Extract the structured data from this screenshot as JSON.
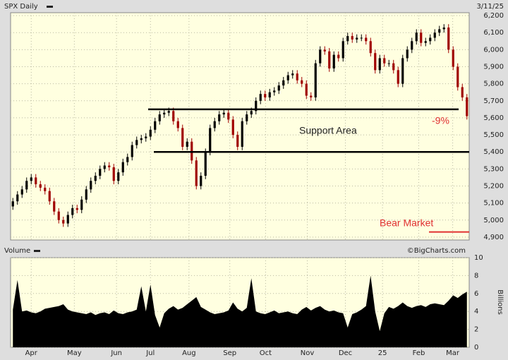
{
  "chart_data": {
    "type": "candlestick",
    "title": "SPX Daily",
    "date": "3/11/25",
    "credit": "©BigCharts.com",
    "up_color": "#000000",
    "down_color": "#a00000",
    "background": "#ffffe0",
    "grid": true,
    "ylim": [
      4883,
      6217
    ],
    "yticks": [
      {
        "value": 4900,
        "label": "4,900"
      },
      {
        "value": 5000,
        "label": "5,000"
      },
      {
        "value": 5100,
        "label": "5,100"
      },
      {
        "value": 5200,
        "label": "5,200"
      },
      {
        "value": 5300,
        "label": "5,300"
      },
      {
        "value": 5400,
        "label": "5,400"
      },
      {
        "value": 5500,
        "label": "5,500"
      },
      {
        "value": 5600,
        "label": "5,600"
      },
      {
        "value": 5700,
        "label": "5,700"
      },
      {
        "value": 5800,
        "label": "5,800"
      },
      {
        "value": 5900,
        "label": "5,900"
      },
      {
        "value": 6000,
        "label": "6,000"
      },
      {
        "value": 6100,
        "label": "6,100"
      },
      {
        "value": 6200,
        "label": "6,200"
      }
    ],
    "xlim": [
      0,
      100
    ],
    "xticks": [
      {
        "value": 4.5,
        "label": "Apr"
      },
      {
        "value": 13.9,
        "label": "May"
      },
      {
        "value": 23.1,
        "label": "Jun"
      },
      {
        "value": 30.5,
        "label": "Jul"
      },
      {
        "value": 38.9,
        "label": "Aug"
      },
      {
        "value": 47.8,
        "label": "Sep"
      },
      {
        "value": 55.6,
        "label": "Oct"
      },
      {
        "value": 64.7,
        "label": "Nov"
      },
      {
        "value": 73,
        "label": "Dec"
      },
      {
        "value": 81.1,
        "label": "25"
      },
      {
        "value": 89,
        "label": "Feb"
      },
      {
        "value": 96.4,
        "label": "Mar"
      }
    ],
    "open": [
      5080,
      5110,
      5150,
      5180,
      5230,
      5250,
      5210,
      5190,
      5170,
      5110,
      5050,
      5000,
      4980,
      5030,
      5070,
      5060,
      5120,
      5180,
      5230,
      5260,
      5300,
      5320,
      5310,
      5230,
      5280,
      5340,
      5370,
      5440,
      5470,
      5480,
      5490,
      5530,
      5580,
      5620,
      5630,
      5640,
      5580,
      5540,
      5430,
      5460,
      5350,
      5200,
      5260,
      5400,
      5540,
      5580,
      5620,
      5630,
      5590,
      5500,
      5430,
      5580,
      5620,
      5640,
      5700,
      5740,
      5720,
      5750,
      5760,
      5790,
      5820,
      5850,
      5860,
      5820,
      5800,
      5730,
      5720,
      5920,
      6000,
      5990,
      5890,
      5970,
      5950,
      6050,
      6080,
      6060,
      6070,
      6070,
      6050,
      5980,
      5880,
      5950,
      5920,
      5920,
      5880,
      5800,
      5950,
      6000,
      6050,
      6100,
      6040,
      6050,
      6070,
      6100,
      6120,
      6130,
      6000,
      5900,
      5780,
      5720
    ],
    "high": [
      5130,
      5170,
      5200,
      5250,
      5270,
      5270,
      5230,
      5210,
      5190,
      5130,
      5070,
      5020,
      5050,
      5090,
      5090,
      5140,
      5200,
      5250,
      5280,
      5320,
      5340,
      5340,
      5330,
      5300,
      5360,
      5390,
      5460,
      5490,
      5500,
      5510,
      5550,
      5600,
      5640,
      5650,
      5660,
      5660,
      5600,
      5560,
      5480,
      5480,
      5370,
      5280,
      5420,
      5560,
      5600,
      5640,
      5650,
      5650,
      5610,
      5520,
      5600,
      5640,
      5660,
      5720,
      5760,
      5760,
      5770,
      5780,
      5810,
      5840,
      5870,
      5880,
      5880,
      5840,
      5820,
      5750,
      5940,
      6020,
      6020,
      6010,
      5990,
      5990,
      6070,
      6100,
      6100,
      6090,
      6090,
      6090,
      6070,
      6000,
      5970,
      5970,
      5940,
      5940,
      5900,
      5970,
      6020,
      6070,
      6120,
      6120,
      6070,
      6090,
      6120,
      6140,
      6150,
      6150,
      6020,
      5920,
      5800,
      5740
    ],
    "low": [
      5060,
      5090,
      5130,
      5160,
      5210,
      5190,
      5170,
      5150,
      5090,
      5030,
      4980,
      4960,
      4960,
      5010,
      5040,
      5040,
      5100,
      5160,
      5210,
      5240,
      5280,
      5290,
      5210,
      5210,
      5260,
      5320,
      5350,
      5420,
      5450,
      5460,
      5470,
      5510,
      5560,
      5600,
      5610,
      5560,
      5520,
      5410,
      5410,
      5330,
      5180,
      5180,
      5240,
      5380,
      5520,
      5560,
      5600,
      5570,
      5480,
      5410,
      5410,
      5560,
      5600,
      5620,
      5680,
      5700,
      5700,
      5730,
      5740,
      5770,
      5800,
      5830,
      5800,
      5780,
      5710,
      5700,
      5700,
      5900,
      5970,
      5870,
      5870,
      5930,
      5930,
      6030,
      6040,
      6040,
      6050,
      6030,
      5960,
      5860,
      5860,
      5900,
      5900,
      5860,
      5780,
      5780,
      5930,
      5980,
      6030,
      6020,
      6020,
      6030,
      6050,
      6080,
      6100,
      5980,
      5880,
      5760,
      5700,
      5590
    ],
    "close": [
      5110,
      5150,
      5180,
      5230,
      5250,
      5210,
      5190,
      5170,
      5110,
      5050,
      5000,
      4980,
      5030,
      5070,
      5060,
      5120,
      5180,
      5230,
      5260,
      5300,
      5320,
      5310,
      5230,
      5280,
      5340,
      5370,
      5440,
      5470,
      5480,
      5490,
      5530,
      5580,
      5620,
      5630,
      5640,
      5580,
      5540,
      5430,
      5460,
      5350,
      5200,
      5260,
      5400,
      5540,
      5580,
      5620,
      5630,
      5590,
      5500,
      5430,
      5580,
      5620,
      5640,
      5700,
      5740,
      5720,
      5750,
      5760,
      5790,
      5820,
      5850,
      5860,
      5820,
      5800,
      5730,
      5720,
      5920,
      6000,
      5990,
      5890,
      5970,
      5950,
      6050,
      6080,
      6060,
      6070,
      6070,
      6050,
      5980,
      5880,
      5950,
      5920,
      5920,
      5880,
      5800,
      5950,
      6000,
      6050,
      6100,
      6040,
      6050,
      6070,
      6100,
      6120,
      6130,
      6000,
      5900,
      5780,
      5720,
      5610
    ],
    "support_levels": [
      5650,
      5400
    ],
    "support_label": "Support Area",
    "drawdown_label": "-9%",
    "bear_market_level": 4930,
    "bear_market_label": "Bear Market",
    "volume": {
      "title": "Volume",
      "axis_label": "Billions",
      "color": "#000000",
      "ylim": [
        0,
        10
      ],
      "yticks": [
        0,
        2,
        4,
        6,
        8,
        10
      ],
      "values": [
        4.2,
        7.5,
        4.0,
        4.1,
        3.9,
        3.8,
        4.0,
        4.3,
        4.4,
        4.5,
        4.6,
        4.8,
        4.2,
        4.0,
        3.9,
        3.8,
        3.7,
        3.9,
        3.6,
        3.8,
        3.9,
        3.7,
        4.1,
        3.8,
        3.7,
        3.9,
        4.0,
        4.2,
        6.8,
        4.0,
        7.0,
        3.6,
        2.2,
        3.8,
        4.3,
        4.6,
        4.2,
        4.4,
        4.8,
        5.2,
        5.6,
        4.5,
        4.2,
        3.9,
        3.7,
        3.8,
        3.9,
        4.1,
        5.0,
        4.3,
        4.0,
        4.4,
        7.7,
        4.0,
        3.8,
        3.7,
        3.9,
        4.1,
        3.8,
        3.9,
        4.0,
        3.8,
        3.7,
        4.2,
        4.5,
        4.1,
        4.4,
        4.6,
        4.2,
        4.0,
        4.1,
        3.9,
        3.8,
        2.2,
        3.7,
        3.9,
        4.2,
        4.6,
        8.0,
        4.0,
        1.8,
        3.8,
        4.5,
        4.3,
        4.6,
        5.0,
        4.6,
        4.4,
        4.6,
        4.7,
        4.5,
        4.8,
        4.9,
        4.8,
        4.7,
        5.2,
        5.8,
        5.5,
        5.9,
        6.2
      ]
    }
  }
}
